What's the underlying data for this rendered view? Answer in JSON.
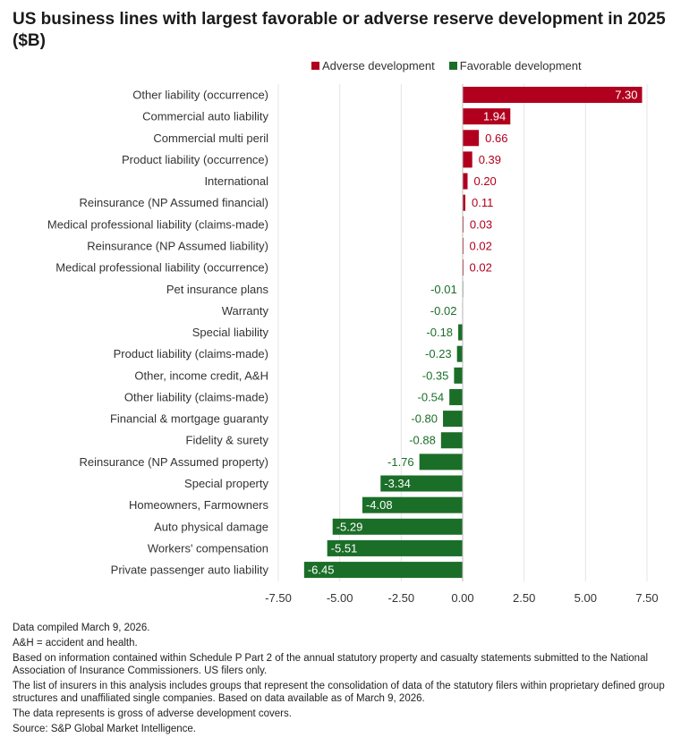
{
  "title": "US business lines with largest favorable or adverse reserve development in 2025 ($B)",
  "colors": {
    "adverse": "#b0001e",
    "favorable": "#1b6e28",
    "grid": "#e4e4e4"
  },
  "chart_data": {
    "type": "bar",
    "orientation": "horizontal",
    "title": "US business lines with largest favorable or adverse reserve development in 2025 ($B)",
    "xlim": [
      -7.5,
      7.5
    ],
    "xticks": [
      "-7.50",
      "-5.00",
      "-2.50",
      "0.00",
      "2.50",
      "5.00",
      "7.50"
    ],
    "grid": true,
    "legend_position": "top-right",
    "legend": [
      "Adverse development",
      "Favorable development"
    ],
    "categories": [
      "Other liability (occurrence)",
      "Commercial auto liability",
      "Commercial multi peril",
      "Product liability (occurrence)",
      "International",
      "Reinsurance (NP Assumed financial)",
      "Medical professional liability (claims-made)",
      "Reinsurance (NP Assumed liability)",
      "Medical professional liability (occurrence)",
      "Pet insurance plans",
      "Warranty",
      "Special liability",
      "Product liability (claims-made)",
      "Other, income credit, A&H",
      "Other liability (claims-made)",
      "Financial & mortgage guaranty",
      "Fidelity & surety",
      "Reinsurance (NP Assumed property)",
      "Special property",
      "Homeowners, Farmowners",
      "Auto physical damage",
      "Workers' compensation",
      "Private passenger auto liability"
    ],
    "values": [
      7.3,
      1.94,
      0.66,
      0.39,
      0.2,
      0.11,
      0.03,
      0.02,
      0.02,
      -0.01,
      -0.02,
      -0.18,
      -0.23,
      -0.35,
      -0.54,
      -0.8,
      -0.88,
      -1.76,
      -3.34,
      -4.08,
      -5.29,
      -5.51,
      -6.45
    ],
    "labels": [
      "7.30",
      "1.94",
      "0.66",
      "0.39",
      "0.20",
      "0.11",
      "0.03",
      "0.02",
      "0.02",
      "-0.01",
      "-0.02",
      "-0.18",
      "-0.23",
      "-0.35",
      "-0.54",
      "-0.80",
      "-0.88",
      "-1.76",
      "-3.34",
      "-4.08",
      "-5.29",
      "-5.51",
      "-6.45"
    ]
  },
  "notes": [
    "Data compiled March 9, 2026.",
    "A&H = accident and health.",
    "Based on information contained within Schedule P Part 2 of the annual statutory property and casualty statements submitted to the National Association of Insurance Commissioners. US filers only.",
    "The list of insurers in this analysis includes groups that represent the consolidation of data of the statutory filers within proprietary defined group structures and unaffiliated single companies. Based on data available as of March 9, 2026.",
    "The data represents is gross of adverse development covers.",
    "Source: S&P Global Market Intelligence."
  ]
}
